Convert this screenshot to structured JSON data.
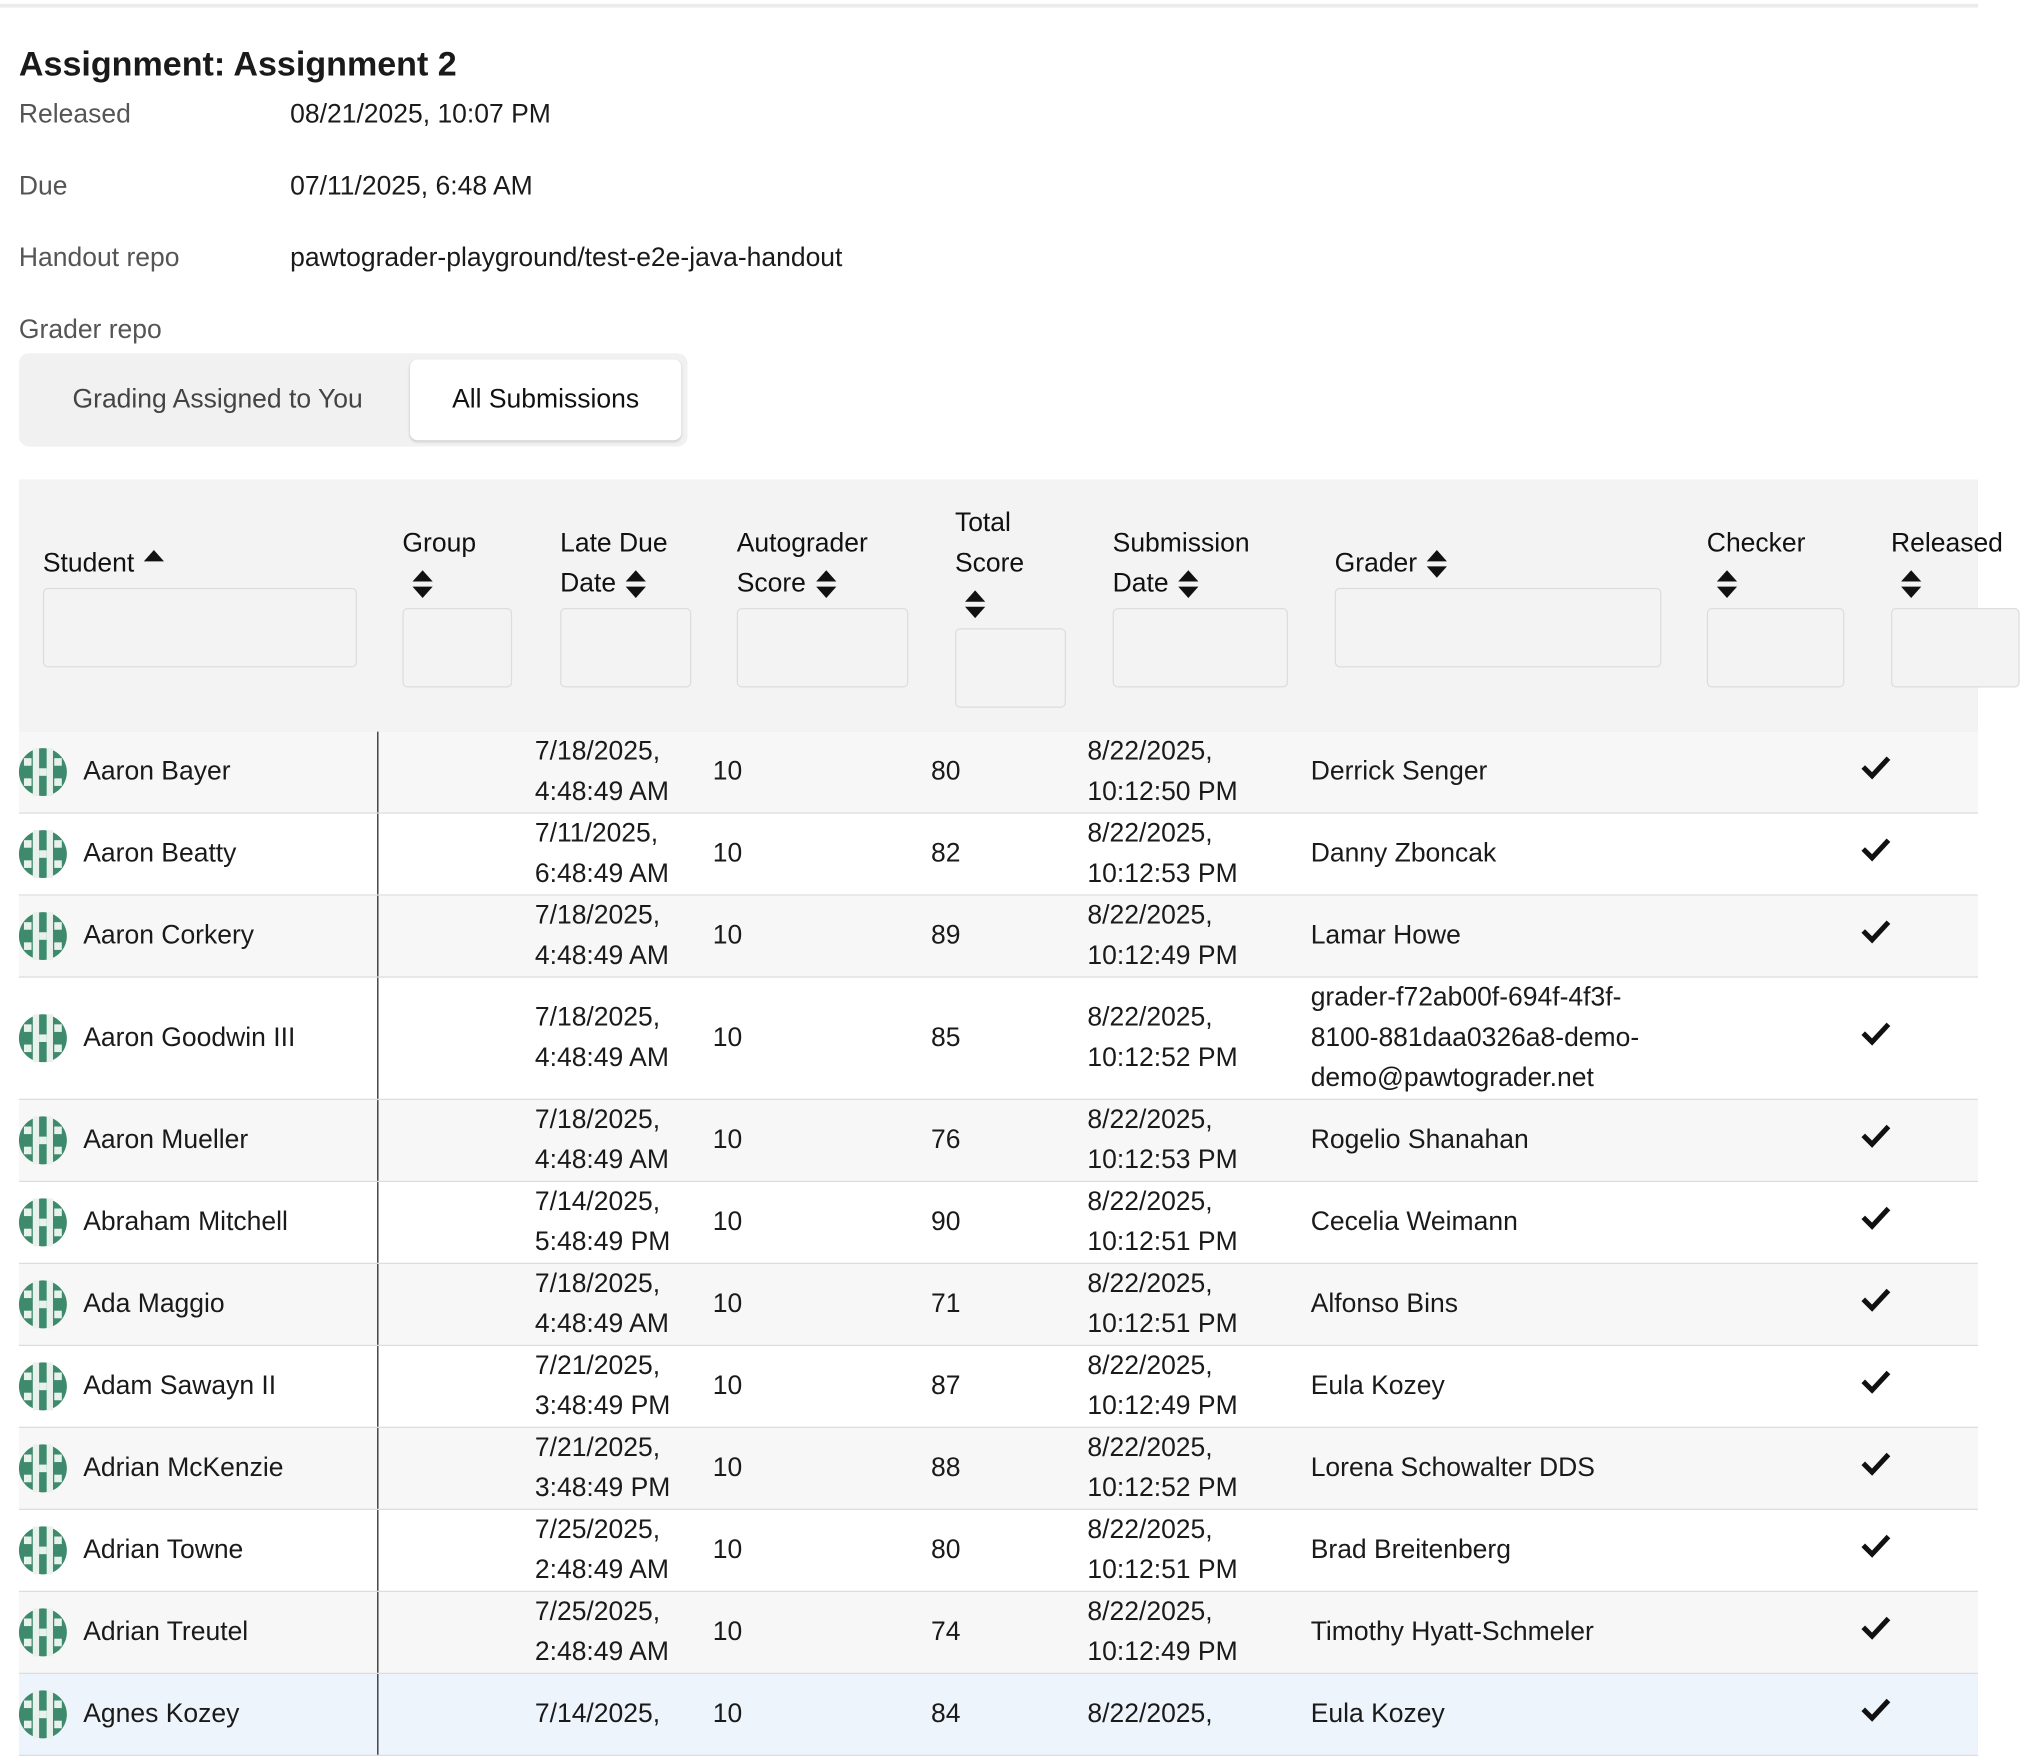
{
  "header": {
    "title": "Assignment: Assignment 2",
    "fields": [
      {
        "label": "Released",
        "value": "08/21/2025, 10:07 PM"
      },
      {
        "label": "Due",
        "value": "07/11/2025, 6:48 AM"
      },
      {
        "label": "Handout repo",
        "value": "pawtograder-playground/test-e2e-java-handout"
      },
      {
        "label": "Grader repo"
      }
    ]
  },
  "tabs": [
    "Grading Assigned to You",
    "All Submissions"
  ],
  "table": {
    "columns": [
      "Student",
      "Group",
      "Late Due Date",
      "Autograder Score",
      "Total Score",
      "Submission Date",
      "Grader",
      "Checker",
      "Released"
    ],
    "rows": [
      [
        "Aaron Bayer",
        "7/18/2025, 4:48:49 AM",
        10,
        80,
        "8/22/2025, 10:12:50 PM",
        "Derrick Senger"
      ],
      [
        "Aaron Beatty",
        "7/11/2025, 6:48:49 AM",
        10,
        82,
        "8/22/2025, 10:12:53 PM",
        "Danny Zboncak"
      ],
      [
        "Aaron Corkery",
        "7/18/2025, 4:48:49 AM",
        10,
        89,
        "8/22/2025, 10:12:49 PM",
        "Lamar Howe"
      ],
      [
        "Aaron Goodwin III",
        "7/18/2025, 4:48:49 AM",
        10,
        85,
        "8/22/2025, 10:12:52 PM",
        "grader-f72ab00f-694f-4f3f-8100-881daa0326a8-demo-demo@pawtograder.net"
      ],
      [
        "Aaron Mueller",
        "7/18/2025, 4:48:49 AM",
        10,
        76,
        "8/22/2025, 10:12:53 PM",
        "Rogelio Shanahan"
      ],
      [
        "Abraham Mitchell",
        "7/14/2025, 5:48:49 PM",
        10,
        90,
        "8/22/2025, 10:12:51 PM",
        "Cecelia Weimann"
      ],
      [
        "Ada Maggio",
        "7/18/2025, 4:48:49 AM",
        10,
        71,
        "8/22/2025, 10:12:51 PM",
        "Alfonso Bins"
      ],
      [
        "Adam Sawayn II",
        "7/21/2025, 3:48:49 PM",
        10,
        87,
        "8/22/2025, 10:12:49 PM",
        "Eula Kozey"
      ],
      [
        "Adrian McKenzie",
        "7/21/2025, 3:48:49 PM",
        10,
        88,
        "8/22/2025, 10:12:52 PM",
        "Lorena Schowalter DDS"
      ],
      [
        "Adrian Towne",
        "7/25/2025, 2:48:49 AM",
        10,
        80,
        "8/22/2025, 10:12:51 PM",
        "Brad Breitenberg"
      ],
      [
        "Adrian Treutel",
        "7/25/2025, 2:48:49 AM",
        10,
        74,
        "8/22/2025, 10:12:49 PM",
        "Timothy Hyatt-Schmeler"
      ],
      [
        "Agnes Kozey",
        "7/14/2025,",
        10,
        84,
        "8/22/2025,",
        "Eula Kozey"
      ]
    ]
  }
}
